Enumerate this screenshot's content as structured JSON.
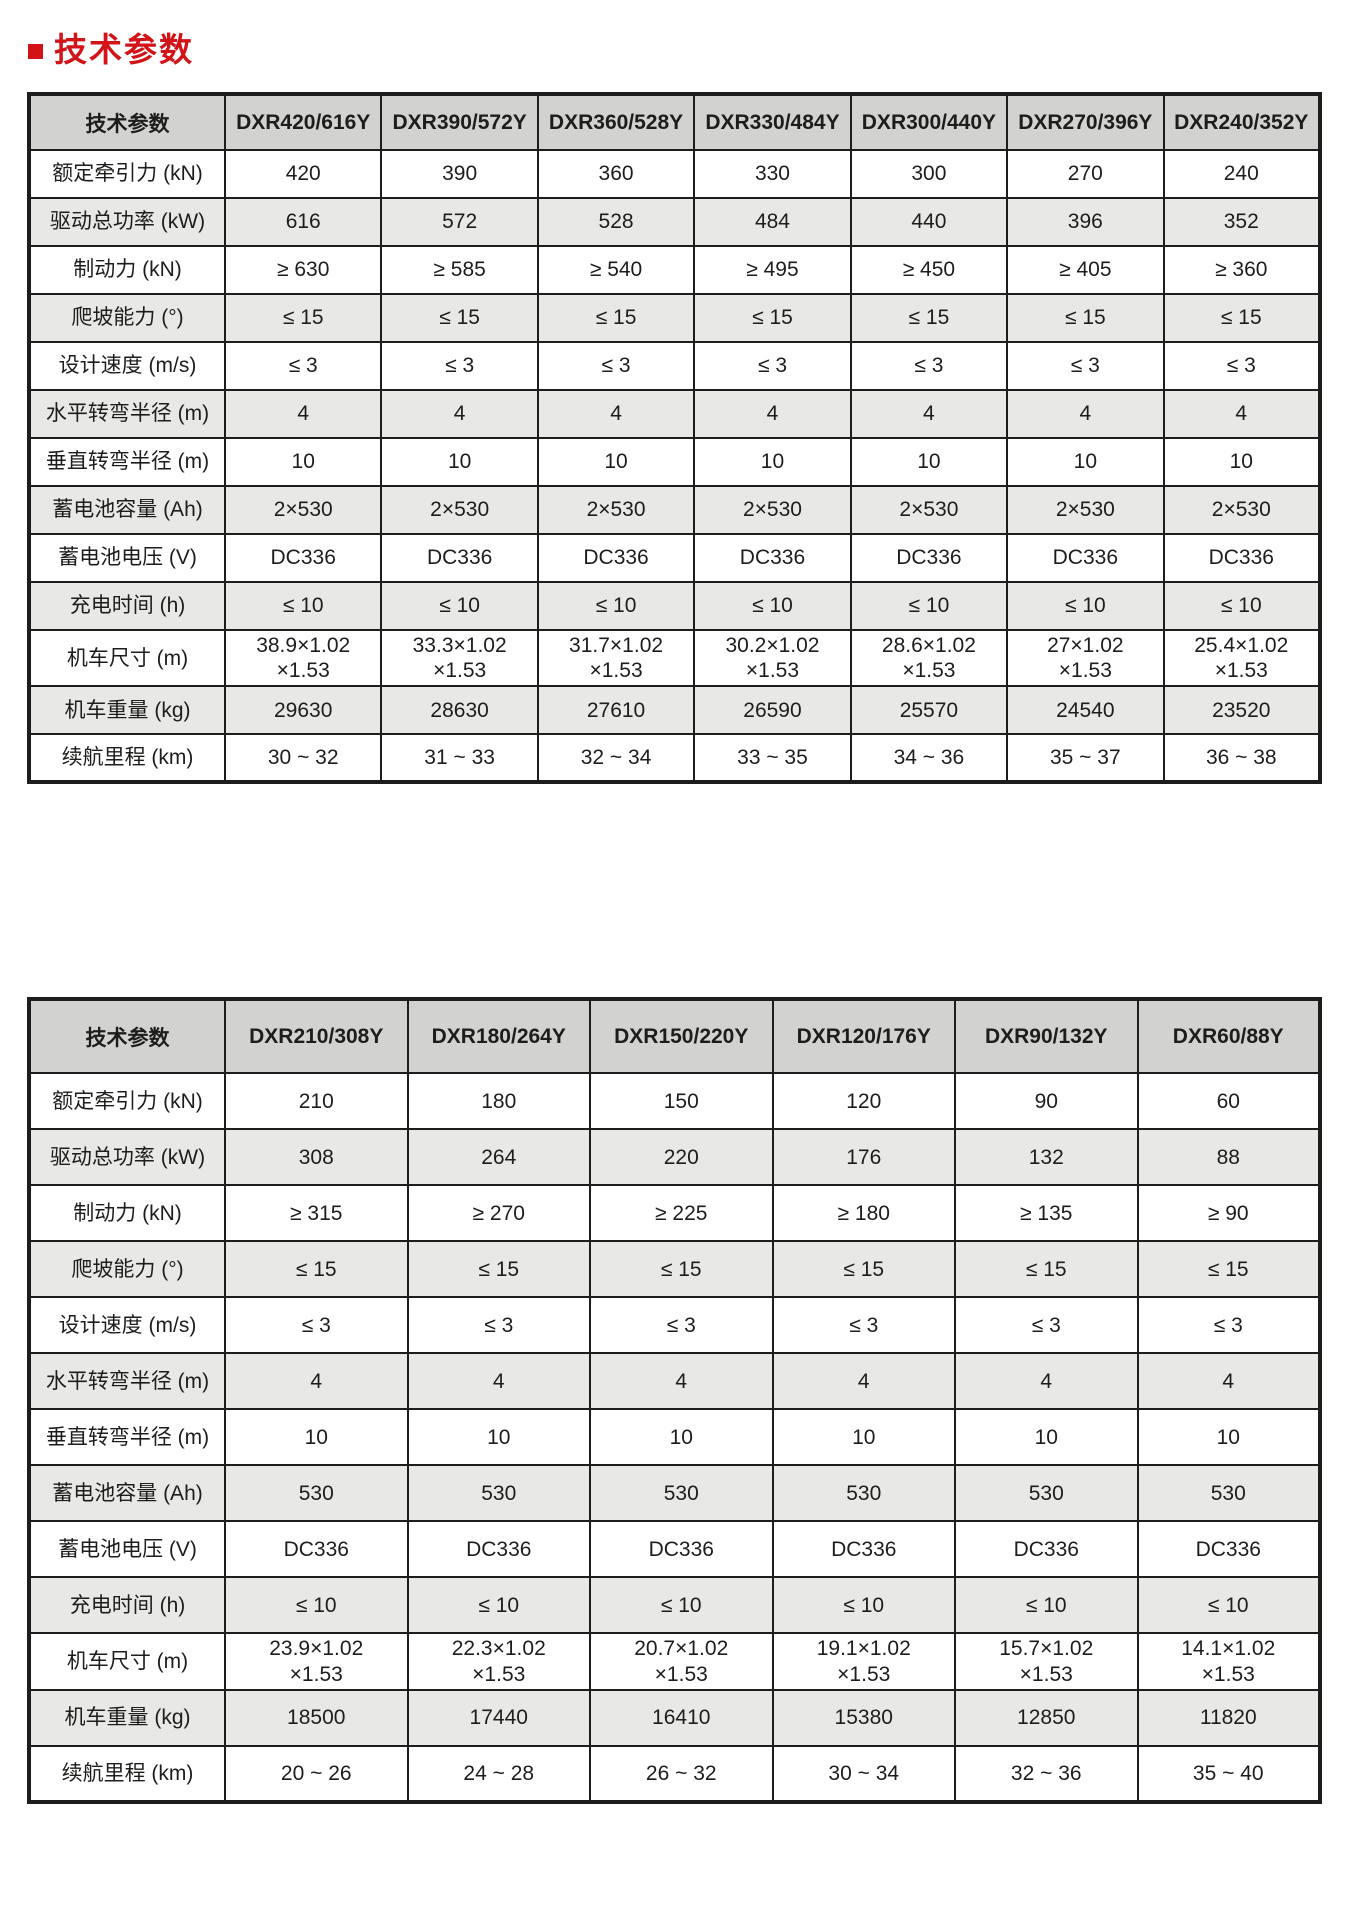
{
  "accent_color": "#d21419",
  "title": "技术参数",
  "tables": [
    {
      "name": "spec-table-1",
      "columns": [
        "技术参数",
        "DXR420/616Y",
        "DXR390/572Y",
        "DXR360/528Y",
        "DXR330/484Y",
        "DXR300/440Y",
        "DXR270/396Y",
        "DXR240/352Y"
      ],
      "rows": [
        {
          "label": "额定牵引力 (kN)",
          "values": [
            "420",
            "390",
            "360",
            "330",
            "300",
            "270",
            "240"
          ]
        },
        {
          "label": "驱动总功率 (kW)",
          "values": [
            "616",
            "572",
            "528",
            "484",
            "440",
            "396",
            "352"
          ]
        },
        {
          "label": "制动力 (kN)",
          "values": [
            "≥ 630",
            "≥ 585",
            "≥ 540",
            "≥ 495",
            "≥ 450",
            "≥ 405",
            "≥ 360"
          ]
        },
        {
          "label": "爬坡能力 (°)",
          "values": [
            "≤ 15",
            "≤ 15",
            "≤ 15",
            "≤ 15",
            "≤ 15",
            "≤ 15",
            "≤ 15"
          ]
        },
        {
          "label": "设计速度 (m/s)",
          "values": [
            "≤ 3",
            "≤ 3",
            "≤ 3",
            "≤ 3",
            "≤ 3",
            "≤ 3",
            "≤ 3"
          ]
        },
        {
          "label": "水平转弯半径 (m)",
          "values": [
            "4",
            "4",
            "4",
            "4",
            "4",
            "4",
            "4"
          ]
        },
        {
          "label": "垂直转弯半径 (m)",
          "values": [
            "10",
            "10",
            "10",
            "10",
            "10",
            "10",
            "10"
          ]
        },
        {
          "label": "蓄电池容量 (Ah)",
          "values": [
            "2×530",
            "2×530",
            "2×530",
            "2×530",
            "2×530",
            "2×530",
            "2×530"
          ]
        },
        {
          "label": "蓄电池电压 (V)",
          "values": [
            "DC336",
            "DC336",
            "DC336",
            "DC336",
            "DC336",
            "DC336",
            "DC336"
          ]
        },
        {
          "label": "充电时间 (h)",
          "values": [
            "≤ 10",
            "≤ 10",
            "≤ 10",
            "≤ 10",
            "≤ 10",
            "≤ 10",
            "≤ 10"
          ]
        },
        {
          "label": "机车尺寸 (m)",
          "values": [
            "38.9×1.02\n×1.53",
            "33.3×1.02\n×1.53",
            "31.7×1.02\n×1.53",
            "30.2×1.02\n×1.53",
            "28.6×1.02\n×1.53",
            "27×1.02\n×1.53",
            "25.4×1.02\n×1.53"
          ]
        },
        {
          "label": "机车重量 (kg)",
          "values": [
            "29630",
            "28630",
            "27610",
            "26590",
            "25570",
            "24540",
            "23520"
          ]
        },
        {
          "label": "续航里程 (km)",
          "values": [
            "30 ~ 32",
            "31 ~ 33",
            "32 ~ 34",
            "33 ~ 35",
            "34 ~ 36",
            "35 ~ 37",
            "36 ~ 38"
          ]
        }
      ]
    },
    {
      "name": "spec-table-2",
      "columns": [
        "技术参数",
        "DXR210/308Y",
        "DXR180/264Y",
        "DXR150/220Y",
        "DXR120/176Y",
        "DXR90/132Y",
        "DXR60/88Y"
      ],
      "rows": [
        {
          "label": "额定牵引力 (kN)",
          "values": [
            "210",
            "180",
            "150",
            "120",
            "90",
            "60"
          ]
        },
        {
          "label": "驱动总功率 (kW)",
          "values": [
            "308",
            "264",
            "220",
            "176",
            "132",
            "88"
          ]
        },
        {
          "label": "制动力 (kN)",
          "values": [
            "≥ 315",
            "≥ 270",
            "≥ 225",
            "≥ 180",
            "≥ 135",
            "≥ 90"
          ]
        },
        {
          "label": "爬坡能力 (°)",
          "values": [
            "≤ 15",
            "≤ 15",
            "≤ 15",
            "≤ 15",
            "≤ 15",
            "≤ 15"
          ]
        },
        {
          "label": "设计速度 (m/s)",
          "values": [
            "≤ 3",
            "≤ 3",
            "≤ 3",
            "≤ 3",
            "≤ 3",
            "≤ 3"
          ]
        },
        {
          "label": "水平转弯半径 (m)",
          "values": [
            "4",
            "4",
            "4",
            "4",
            "4",
            "4"
          ]
        },
        {
          "label": "垂直转弯半径 (m)",
          "values": [
            "10",
            "10",
            "10",
            "10",
            "10",
            "10"
          ]
        },
        {
          "label": "蓄电池容量 (Ah)",
          "values": [
            "530",
            "530",
            "530",
            "530",
            "530",
            "530"
          ]
        },
        {
          "label": "蓄电池电压 (V)",
          "values": [
            "DC336",
            "DC336",
            "DC336",
            "DC336",
            "DC336",
            "DC336"
          ]
        },
        {
          "label": "充电时间 (h)",
          "values": [
            "≤ 10",
            "≤ 10",
            "≤ 10",
            "≤ 10",
            "≤ 10",
            "≤ 10"
          ]
        },
        {
          "label": "机车尺寸 (m)",
          "values": [
            "23.9×1.02\n×1.53",
            "22.3×1.02\n×1.53",
            "20.7×1.02\n×1.53",
            "19.1×1.02\n×1.53",
            "15.7×1.02\n×1.53",
            "14.1×1.02\n×1.53"
          ]
        },
        {
          "label": "机车重量 (kg)",
          "values": [
            "18500",
            "17440",
            "16410",
            "15380",
            "12850",
            "11820"
          ]
        },
        {
          "label": "续航里程 (km)",
          "values": [
            "20 ~ 26",
            "24 ~ 28",
            "26 ~ 32",
            "30 ~ 34",
            "32 ~ 36",
            "35 ~ 40"
          ]
        }
      ]
    }
  ]
}
